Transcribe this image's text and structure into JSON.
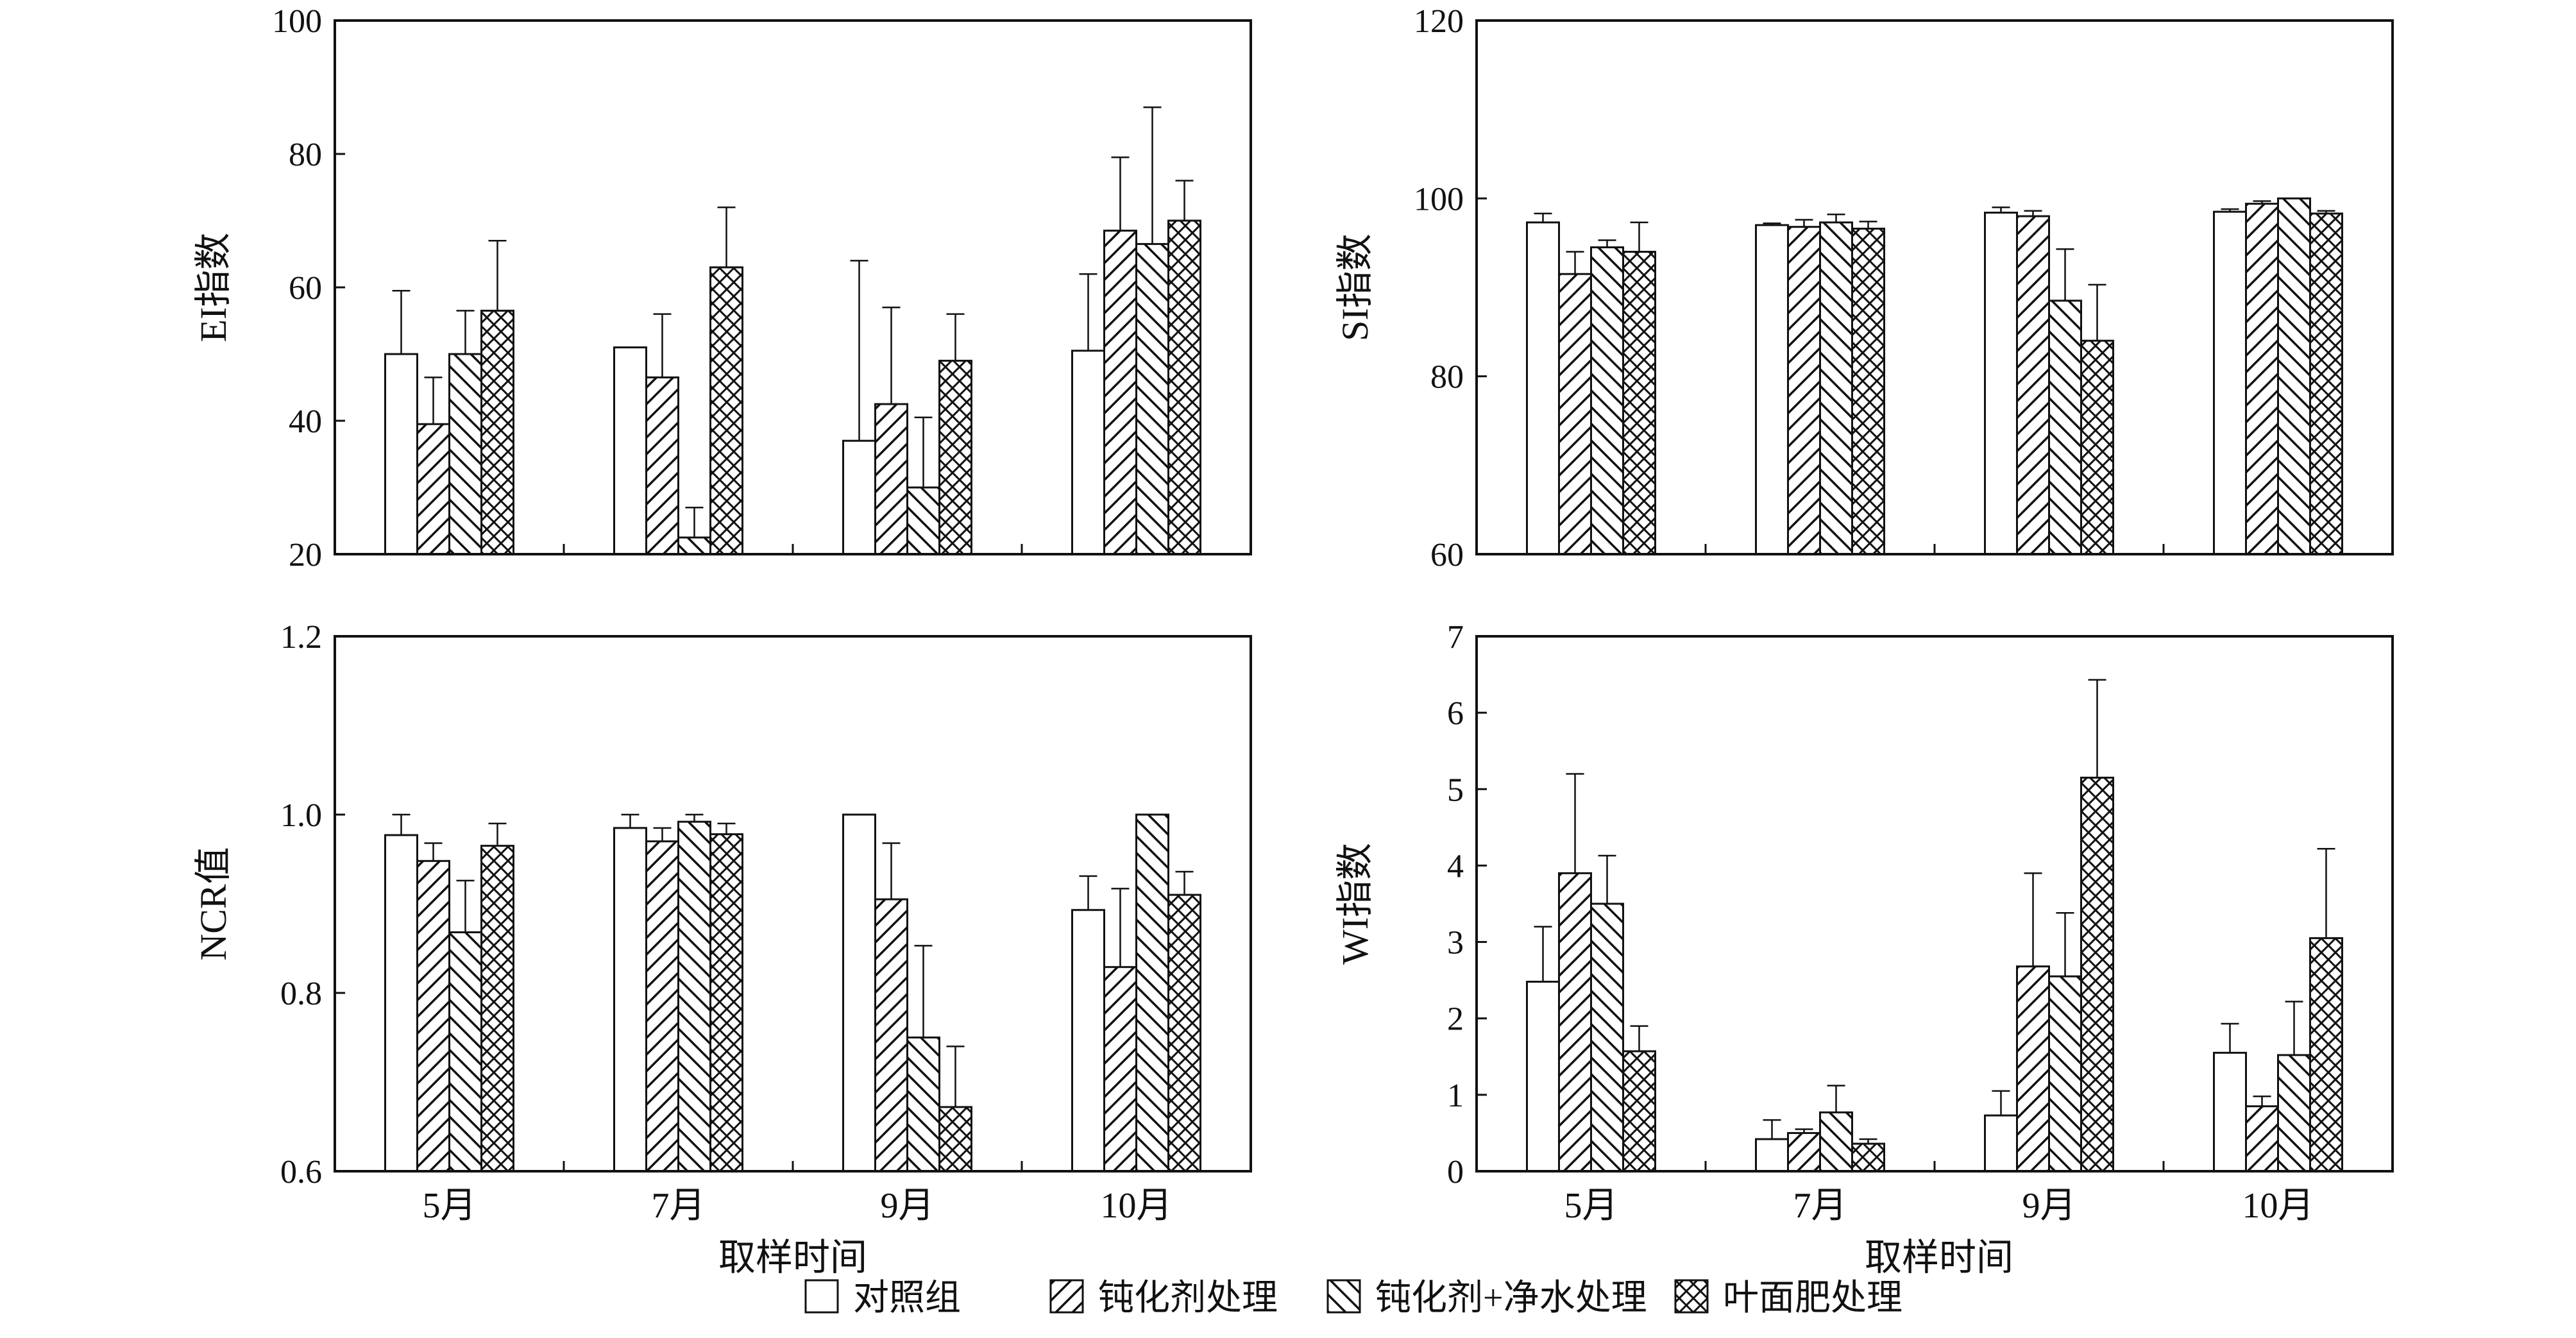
{
  "figure": {
    "xlabel_shared": "取样时间",
    "legend": [
      {
        "name": "对照组",
        "pattern": "none"
      },
      {
        "name": "钝化剂处理",
        "pattern": "diag-right"
      },
      {
        "name": "钝化剂+净水处理",
        "pattern": "diag-left"
      },
      {
        "name": "叶面肥处理",
        "pattern": "crosshatch"
      }
    ]
  },
  "chart_data": [
    {
      "type": "bar",
      "ylabel": "EI指数",
      "xlabel": "",
      "ylim": [
        20,
        100
      ],
      "yticks": [
        "20",
        "40",
        "60",
        "80",
        "100"
      ],
      "categories": [
        "5月",
        "7月",
        "9月",
        "10月"
      ],
      "series": [
        {
          "name": "对照组",
          "values": [
            50,
            51,
            37,
            50.5
          ],
          "errors": [
            9.5,
            0,
            27,
            11.5
          ]
        },
        {
          "name": "钝化剂处理",
          "values": [
            39.5,
            46.5,
            42.5,
            68.5
          ],
          "errors": [
            7,
            9.5,
            14.5,
            11
          ]
        },
        {
          "name": "钝化剂+净水处理",
          "values": [
            50,
            22.5,
            30,
            66.5
          ],
          "errors": [
            6.5,
            4.5,
            10.5,
            20.5
          ]
        },
        {
          "name": "叶面肥处理",
          "values": [
            56.5,
            63,
            49,
            70
          ],
          "errors": [
            10.5,
            9,
            7,
            6
          ]
        }
      ]
    },
    {
      "type": "bar",
      "ylabel": "SI指数",
      "xlabel": "",
      "ylim": [
        60,
        120
      ],
      "yticks": [
        "60",
        "80",
        "100",
        "120"
      ],
      "categories": [
        "5月",
        "7月",
        "9月",
        "10月"
      ],
      "series": [
        {
          "name": "对照组",
          "values": [
            97.3,
            97,
            98.4,
            98.5
          ],
          "errors": [
            1,
            0.2,
            0.6,
            0.3
          ]
        },
        {
          "name": "钝化剂处理",
          "values": [
            91.5,
            96.8,
            98,
            99.4
          ],
          "errors": [
            2.5,
            0.8,
            0.6,
            0.3
          ]
        },
        {
          "name": "钝化剂+净水处理",
          "values": [
            94.5,
            97.3,
            88.5,
            100
          ],
          "errors": [
            0.8,
            0.9,
            5.8,
            0
          ]
        },
        {
          "name": "叶面肥处理",
          "values": [
            94,
            96.6,
            84,
            98.3
          ],
          "errors": [
            3.3,
            0.8,
            6.3,
            0.3
          ]
        }
      ]
    },
    {
      "type": "bar",
      "ylabel": "NCR值",
      "xlabel": "取样时间",
      "ylim": [
        0.6,
        1.2
      ],
      "yticks": [
        "0.6",
        "0.8",
        "1.0",
        "1.2"
      ],
      "categories": [
        "5月",
        "7月",
        "9月",
        "10月"
      ],
      "series": [
        {
          "name": "对照组",
          "values": [
            0.977,
            0.985,
            1.0,
            0.893
          ],
          "errors": [
            0.023,
            0.015,
            0,
            0.038
          ]
        },
        {
          "name": "钝化剂处理",
          "values": [
            0.948,
            0.97,
            0.905,
            0.829
          ],
          "errors": [
            0.02,
            0.015,
            0.063,
            0.088
          ]
        },
        {
          "name": "钝化剂+净水处理",
          "values": [
            0.868,
            0.992,
            0.75,
            1.0
          ],
          "errors": [
            0.058,
            0.008,
            0.103,
            0
          ]
        },
        {
          "name": "叶面肥处理",
          "values": [
            0.965,
            0.978,
            0.672,
            0.91
          ],
          "errors": [
            0.025,
            0.012,
            0.068,
            0.026
          ]
        }
      ]
    },
    {
      "type": "bar",
      "ylabel": "WI指数",
      "xlabel": "取样时间",
      "ylim": [
        0,
        7
      ],
      "yticks": [
        "0",
        "1",
        "2",
        "3",
        "4",
        "5",
        "6",
        "7"
      ],
      "categories": [
        "5月",
        "7月",
        "9月",
        "10月"
      ],
      "series": [
        {
          "name": "对照组",
          "values": [
            2.48,
            0.42,
            0.73,
            1.55
          ],
          "errors": [
            0.72,
            0.25,
            0.32,
            0.38
          ]
        },
        {
          "name": "钝化剂处理",
          "values": [
            3.9,
            0.5,
            2.68,
            0.85
          ],
          "errors": [
            1.3,
            0.05,
            1.22,
            0.13
          ]
        },
        {
          "name": "钝化剂+净水处理",
          "values": [
            3.5,
            0.77,
            2.55,
            1.52
          ],
          "errors": [
            0.63,
            0.35,
            0.83,
            0.7
          ]
        },
        {
          "name": "叶面肥处理",
          "values": [
            1.57,
            0.36,
            5.15,
            3.05
          ],
          "errors": [
            0.33,
            0.06,
            1.28,
            1.17
          ]
        }
      ]
    }
  ]
}
